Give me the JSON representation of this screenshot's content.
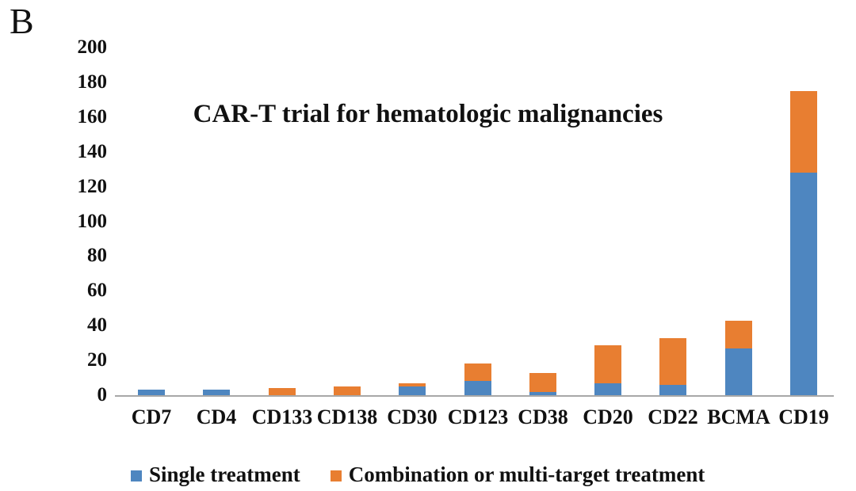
{
  "panel_label": "B",
  "chart_data": {
    "type": "bar",
    "stacked": true,
    "title": "CAR-T trial for hematologic malignancies",
    "categories": [
      "CD7",
      "CD4",
      "CD133",
      "CD138",
      "CD30",
      "CD123",
      "CD38",
      "CD20",
      "CD22",
      "BCMA",
      "CD19"
    ],
    "series": [
      {
        "name": "Single treatment",
        "color": "#4E86C0",
        "values": [
          3,
          3,
          0,
          0,
          5,
          8,
          2,
          7,
          6,
          27,
          128
        ]
      },
      {
        "name": "Combination or multi-target treatment",
        "color": "#E87E31",
        "values": [
          0,
          0,
          4,
          5,
          2,
          10,
          11,
          22,
          27,
          16,
          47
        ]
      }
    ],
    "xlabel": "",
    "ylabel": "",
    "ylim": [
      0,
      200
    ],
    "yticks": [
      0,
      20,
      40,
      60,
      80,
      100,
      120,
      140,
      160,
      180,
      200
    ],
    "grid": false,
    "legend_position": "bottom",
    "axis_line_color": "#A8A8A8",
    "text_color": "#111111",
    "background_color": "#FFFFFF"
  }
}
